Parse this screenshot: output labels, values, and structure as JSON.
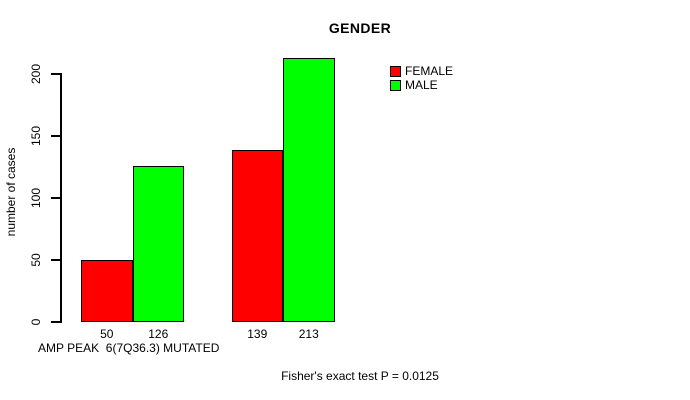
{
  "chart_data": {
    "type": "bar",
    "title": "GENDER",
    "ylabel": "number of cases",
    "xlabel": "AMP PEAK  6(7Q36.3) MUTATED",
    "footnote": "Fisher's exact test P = 0.0125",
    "n_groups": 2,
    "series": [
      {
        "name": "FEMALE",
        "color": "#FF0000",
        "values": [
          50,
          139
        ]
      },
      {
        "name": "MALE",
        "color": "#00FF00",
        "values": [
          126,
          213
        ]
      }
    ],
    "bar_value_labels": [
      "50",
      "126",
      "139",
      "213"
    ],
    "show_bar_values": true,
    "yticks": [
      0,
      50,
      100,
      150,
      200
    ],
    "ylim": [
      0,
      220
    ],
    "grid": false,
    "legend_position": "top-right",
    "background_color": "#FFFFFF",
    "text_color": "#000000"
  }
}
